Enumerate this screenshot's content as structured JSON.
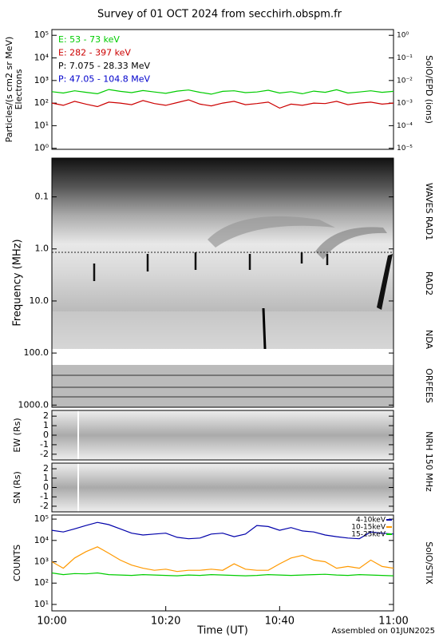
{
  "title": "Survey of 01 OCT 2024 from secchirh.obspm.fr",
  "footer": "Assembled on 01JUN2025",
  "chart_data": [
    {
      "type": "line",
      "ylabel": "Particles/(s cm2 sr MeV)",
      "ylabel2": "Electrons",
      "y2label": "SolO/EPD (ions)",
      "log": true,
      "xlim": [
        0,
        60
      ],
      "ylim": [
        0.9,
        180000
      ],
      "y2lim": [
        9e-06,
        1.8
      ],
      "yticks": [
        {
          "value": 1,
          "label": "10⁰"
        },
        {
          "value": 10,
          "label": "10¹"
        },
        {
          "value": 100,
          "label": "10²"
        },
        {
          "value": 1000,
          "label": "10³"
        },
        {
          "value": 10000,
          "label": "10⁴"
        },
        {
          "value": 100000,
          "label": "10⁵"
        }
      ],
      "y2ticks": [
        {
          "value": 1,
          "label": "10⁰"
        },
        {
          "value": 0.1,
          "label": "10⁻¹"
        },
        {
          "value": 0.01,
          "label": "10⁻²"
        },
        {
          "value": 0.001,
          "label": "10⁻³"
        },
        {
          "value": 0.0001,
          "label": "10⁻⁴"
        },
        {
          "value": 1e-05,
          "label": "10⁻⁵"
        }
      ],
      "x": [
        0,
        2,
        4,
        6,
        8,
        10,
        12,
        14,
        16,
        18,
        20,
        22,
        24,
        26,
        28,
        30,
        32,
        34,
        36,
        38,
        40,
        42,
        44,
        46,
        48,
        50,
        52,
        54,
        56,
        58,
        60
      ],
      "series": [
        {
          "name": "E: 53 - 73 keV",
          "color": "#00cc00",
          "values": [
            320,
            280,
            350,
            300,
            260,
            400,
            330,
            290,
            360,
            310,
            270,
            340,
            380,
            300,
            250,
            330,
            350,
            290,
            310,
            370,
            280,
            320,
            260,
            340,
            300,
            390,
            280,
            310,
            350,
            300,
            330
          ]
        },
        {
          "name": "E: 282 - 397 keV",
          "color": "#cc0000",
          "values": [
            100,
            80,
            120,
            90,
            70,
            110,
            100,
            85,
            130,
            95,
            80,
            105,
            140,
            90,
            75,
            100,
            120,
            85,
            95,
            110,
            60,
            90,
            80,
            100,
            95,
            120,
            85,
            100,
            110,
            90,
            100
          ]
        },
        {
          "name": "P: 7.075 - 28.33 MeV",
          "color": "#000000",
          "values": [
            null,
            null,
            null,
            null,
            null,
            null,
            null,
            null,
            null,
            null,
            null,
            null,
            null,
            null,
            null,
            null,
            null,
            null,
            null,
            null,
            null,
            null,
            null,
            null,
            null,
            null,
            null,
            null,
            null,
            null,
            null
          ]
        },
        {
          "name": "P: 47.05 - 104.8 MeV",
          "color": "#0000cc",
          "values": [
            null,
            null,
            null,
            null,
            null,
            null,
            null,
            null,
            null,
            null,
            null,
            null,
            null,
            null,
            null,
            null,
            null,
            null,
            null,
            null,
            null,
            null,
            null,
            null,
            null,
            null,
            null,
            null,
            null,
            null,
            null
          ]
        }
      ]
    },
    {
      "type": "spectrogram",
      "ylabel": "Frequency (MHz)",
      "log": true,
      "inverted": true,
      "ylim": [
        0.018,
        1100
      ],
      "yticks": [
        0.1,
        {
          "value": 1,
          "label": "1.0"
        },
        {
          "value": 10,
          "label": "10.0"
        },
        {
          "value": 100,
          "label": "100.0"
        },
        {
          "value": 1000,
          "label": "1000.0"
        }
      ],
      "instruments": [
        "WAVES RAD1",
        "RAD2",
        "NDA",
        "ORFEES"
      ]
    },
    {
      "type": "image",
      "ylabel": "EW (Rs)",
      "y2label": "NRH 150 MHz",
      "ylim": [
        -2.6,
        2.6
      ],
      "yticks": [
        2,
        1,
        0,
        -1,
        -2
      ]
    },
    {
      "type": "image",
      "ylabel": "SN (Rs)",
      "ylim": [
        -2.6,
        2.6
      ],
      "yticks": [
        2,
        1,
        0,
        -1,
        -2
      ]
    },
    {
      "type": "line",
      "ylabel": "COUNTS",
      "y2label": "SolO/STIX",
      "xlabel": "Time (UT)",
      "log": true,
      "legend": "top-right",
      "xlim": [
        0,
        60
      ],
      "ylim": [
        5,
        155000
      ],
      "xticks": [
        {
          "value": 0,
          "label": "10:00"
        },
        {
          "value": 20,
          "label": "10:20"
        },
        {
          "value": 40,
          "label": "10:40"
        },
        {
          "value": 60,
          "label": "11:00"
        }
      ],
      "yticks": [
        {
          "value": 10,
          "label": "10¹"
        },
        {
          "value": 100,
          "label": "10²"
        },
        {
          "value": 1000,
          "label": "10³"
        },
        {
          "value": 10000,
          "label": "10⁴"
        },
        {
          "value": 100000,
          "label": "10⁵"
        }
      ],
      "x": [
        0,
        2,
        4,
        6,
        8,
        10,
        12,
        14,
        16,
        18,
        20,
        22,
        24,
        26,
        28,
        30,
        32,
        34,
        36,
        38,
        40,
        42,
        44,
        46,
        48,
        50,
        52,
        54,
        56,
        58,
        60
      ],
      "series": [
        {
          "name": "4-10keV",
          "color": "#0000aa",
          "values": [
            30000,
            25000,
            35000,
            50000,
            70000,
            55000,
            35000,
            22000,
            18000,
            20000,
            22000,
            14000,
            12000,
            13000,
            20000,
            22000,
            15000,
            20000,
            50000,
            45000,
            30000,
            40000,
            28000,
            25000,
            18000,
            15000,
            13000,
            12000,
            25000,
            22000,
            20000
          ]
        },
        {
          "name": "10-15keV",
          "color": "#ff9900",
          "values": [
            1000,
            500,
            1500,
            3000,
            5000,
            2500,
            1200,
            700,
            500,
            400,
            450,
            350,
            400,
            400,
            450,
            400,
            800,
            450,
            400,
            400,
            800,
            1500,
            2000,
            1200,
            1000,
            500,
            600,
            500,
            1200,
            600,
            500
          ]
        },
        {
          "name": "15-25keV",
          "color": "#00cc00",
          "values": [
            300,
            250,
            280,
            270,
            300,
            250,
            240,
            230,
            250,
            240,
            230,
            220,
            240,
            230,
            250,
            240,
            230,
            220,
            230,
            250,
            240,
            230,
            240,
            250,
            260,
            240,
            230,
            250,
            240,
            230,
            220
          ]
        }
      ]
    }
  ]
}
